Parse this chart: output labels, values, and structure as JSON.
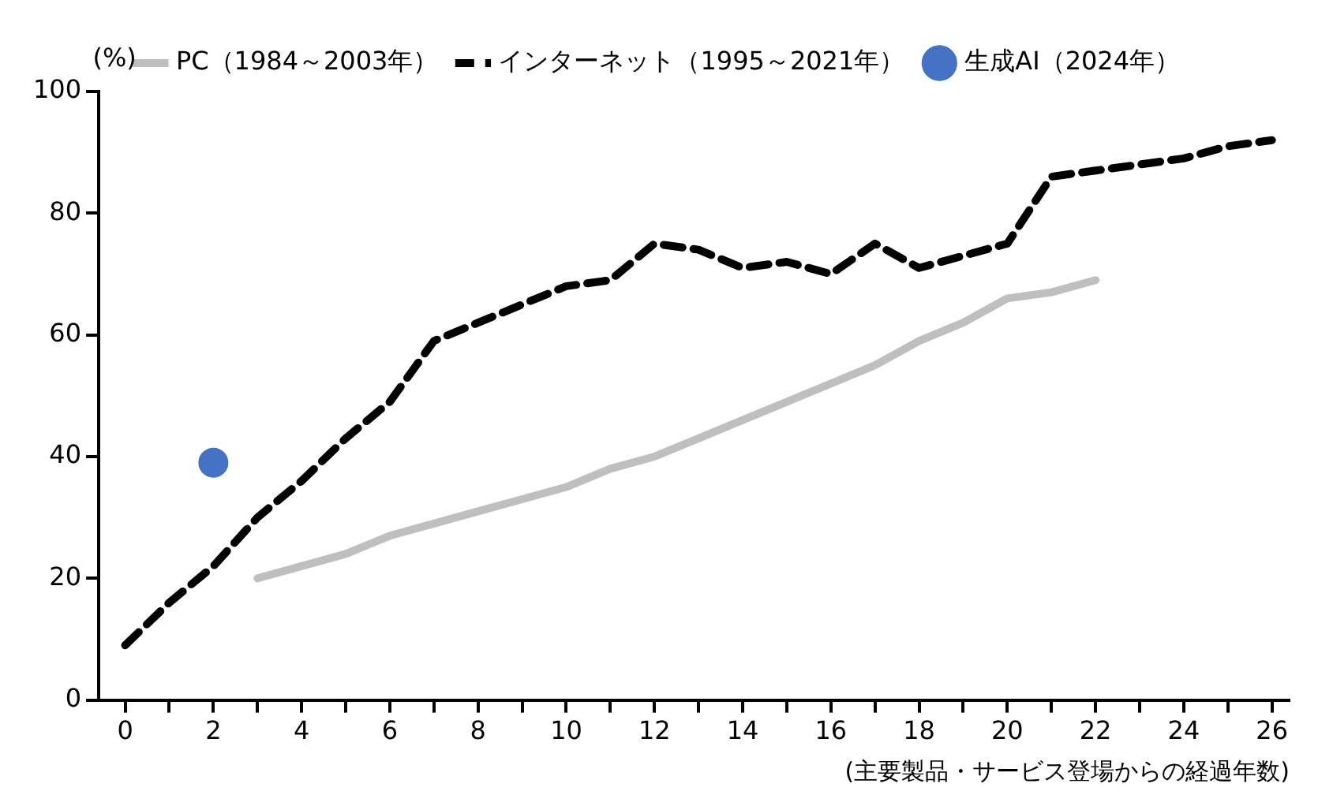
{
  "chart_data": {
    "type": "line",
    "ylabel": "(%)",
    "xlabel": "(主要製品・サービス登場からの経過年数)",
    "xlim": [
      -0.6,
      26.4
    ],
    "xticks": [
      0,
      {
        "value": 1,
        "label": null
      },
      2,
      {
        "value": 3,
        "label": null
      },
      4,
      {
        "value": 5,
        "label": null
      },
      6,
      {
        "value": 7,
        "label": null
      },
      8,
      {
        "value": 9,
        "label": null
      },
      10,
      {
        "value": 11,
        "label": null
      },
      12,
      {
        "value": 13,
        "label": null
      },
      14,
      {
        "value": 15,
        "label": null
      },
      16,
      {
        "value": 17,
        "label": null
      },
      18,
      {
        "value": 19,
        "label": null
      },
      20,
      {
        "value": 21,
        "label": null
      },
      22,
      {
        "value": 23,
        "label": null
      },
      24,
      {
        "value": 25,
        "label": null
      },
      26
    ],
    "ylim": [
      0,
      100
    ],
    "yticks": [
      0,
      20,
      40,
      60,
      80,
      100
    ],
    "grid": false,
    "legend": "top",
    "series": [
      {
        "name": "PC（1984～2003年）",
        "color": "#bfbfbf",
        "line_style": "solid",
        "marker": "none",
        "x": [
          3,
          4,
          5,
          6,
          7,
          8,
          9,
          10,
          11,
          12,
          13,
          14,
          15,
          16,
          17,
          18,
          19,
          20,
          21,
          22
        ],
        "values": [
          20,
          22,
          24,
          27,
          29,
          31,
          33,
          35,
          38,
          40,
          43,
          46,
          49,
          52,
          55,
          59,
          62,
          66,
          67,
          69
        ]
      },
      {
        "name": "インターネット（1995～2021年）",
        "color": "#000000",
        "line_style": "dashed",
        "marker": "none",
        "x": [
          0,
          1,
          2,
          3,
          4,
          5,
          6,
          7,
          8,
          9,
          10,
          11,
          12,
          13,
          14,
          15,
          16,
          17,
          18,
          19,
          20,
          21,
          22,
          23,
          24,
          25,
          26
        ],
        "values": [
          9,
          16,
          22,
          30,
          36,
          43,
          49,
          59,
          62,
          65,
          68,
          69,
          75,
          74,
          71,
          72,
          70,
          75,
          71,
          73,
          75,
          86,
          87,
          88,
          89,
          91,
          92
        ]
      },
      {
        "name": "生成AI（2024年）",
        "type": "scatter",
        "color": "#4472c4",
        "marker": "circle",
        "x": [
          2
        ],
        "values": [
          39
        ]
      }
    ]
  }
}
